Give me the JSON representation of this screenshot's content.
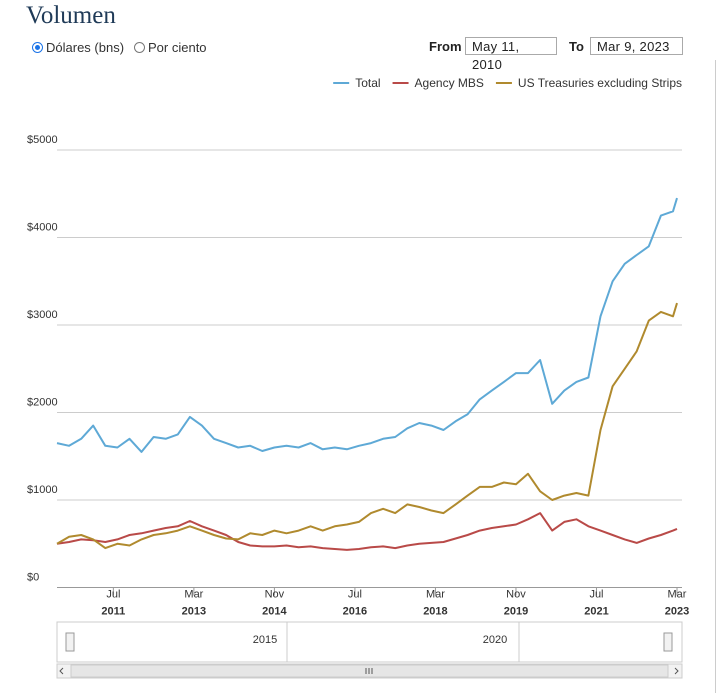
{
  "header": {
    "title": "Volumen",
    "options": [
      {
        "label": "Dólares (bns)",
        "selected": true
      },
      {
        "label": "Por ciento",
        "selected": false
      }
    ],
    "range": {
      "from_label": "From",
      "from": "May 11, 2010",
      "to_label": "To",
      "to": "Mar 9, 2023"
    }
  },
  "chart_data": {
    "type": "line",
    "x": [
      "2010-05",
      "2010-08",
      "2010-11",
      "2011-02",
      "2011-05",
      "2011-08",
      "2011-11",
      "2012-02",
      "2012-05",
      "2012-08",
      "2012-11",
      "2013-02",
      "2013-05",
      "2013-08",
      "2013-11",
      "2014-02",
      "2014-05",
      "2014-08",
      "2014-11",
      "2015-02",
      "2015-05",
      "2015-08",
      "2015-11",
      "2016-02",
      "2016-05",
      "2016-08",
      "2016-11",
      "2017-02",
      "2017-05",
      "2017-08",
      "2017-11",
      "2018-02",
      "2018-05",
      "2018-08",
      "2018-11",
      "2019-02",
      "2019-05",
      "2019-08",
      "2019-11",
      "2020-02",
      "2020-05",
      "2020-08",
      "2020-11",
      "2021-02",
      "2021-05",
      "2021-08",
      "2021-11",
      "2022-02",
      "2022-05",
      "2022-08",
      "2022-11",
      "2023-02",
      "2023-03"
    ],
    "series": [
      {
        "name": "Total",
        "color": "#5ea9d6",
        "values": [
          1650,
          1620,
          1700,
          1850,
          1620,
          1600,
          1700,
          1550,
          1720,
          1700,
          1750,
          1950,
          1850,
          1700,
          1650,
          1600,
          1620,
          1560,
          1600,
          1620,
          1600,
          1650,
          1580,
          1600,
          1580,
          1620,
          1650,
          1700,
          1720,
          1820,
          1880,
          1850,
          1800,
          1900,
          1980,
          2150,
          2250,
          2350,
          2450,
          2450,
          2600,
          2100,
          2250,
          2350,
          2400,
          3100,
          3500,
          3700,
          3800,
          3900,
          4250,
          4300,
          4450
        ]
      },
      {
        "name": "Agency MBS",
        "color": "#b94a48",
        "values": [
          500,
          520,
          550,
          540,
          520,
          550,
          600,
          620,
          650,
          680,
          700,
          760,
          700,
          650,
          600,
          520,
          480,
          470,
          470,
          480,
          460,
          470,
          450,
          440,
          430,
          440,
          460,
          470,
          450,
          480,
          500,
          510,
          520,
          560,
          600,
          650,
          680,
          700,
          720,
          780,
          850,
          650,
          750,
          780,
          700,
          650,
          600,
          550,
          510,
          560,
          600,
          650,
          670
        ]
      },
      {
        "name": "US Treasuries excluding Strips",
        "color": "#b08a2e",
        "values": [
          500,
          580,
          600,
          550,
          450,
          500,
          480,
          550,
          600,
          620,
          650,
          700,
          650,
          600,
          560,
          550,
          620,
          600,
          650,
          620,
          650,
          700,
          650,
          700,
          720,
          750,
          850,
          900,
          850,
          950,
          920,
          880,
          850,
          950,
          1050,
          1150,
          1150,
          1200,
          1180,
          1300,
          1100,
          1000,
          1050,
          1080,
          1050,
          1800,
          2300,
          2500,
          2700,
          3050,
          3150,
          3100,
          3250
        ]
      }
    ],
    "xlim": [
      "2010-05",
      "2023-03"
    ],
    "xticks": [
      {
        "value": "2011-07",
        "label": "Jul",
        "year": "2011"
      },
      {
        "value": "2013-03",
        "label": "Mar",
        "year": "2013"
      },
      {
        "value": "2014-11",
        "label": "Nov",
        "year": "2014"
      },
      {
        "value": "2016-07",
        "label": "Jul",
        "year": "2016"
      },
      {
        "value": "2018-03",
        "label": "Mar",
        "year": "2018"
      },
      {
        "value": "2019-11",
        "label": "Nov",
        "year": "2019"
      },
      {
        "value": "2021-07",
        "label": "Jul",
        "year": "2021"
      },
      {
        "value": "2023-03",
        "label": "Mar",
        "year": "2023"
      }
    ],
    "ylim": [
      0,
      5000
    ],
    "yticks": [
      {
        "value": 0,
        "label": "$0"
      },
      {
        "value": 1000,
        "label": "$1000"
      },
      {
        "value": 2000,
        "label": "$2000"
      },
      {
        "value": 3000,
        "label": "$3000"
      },
      {
        "value": 4000,
        "label": "$4000"
      },
      {
        "value": 5000,
        "label": "$5000"
      }
    ],
    "grid": true,
    "legend": "top-right"
  },
  "navigator": {
    "labels": [
      "2015",
      "2020"
    ]
  }
}
